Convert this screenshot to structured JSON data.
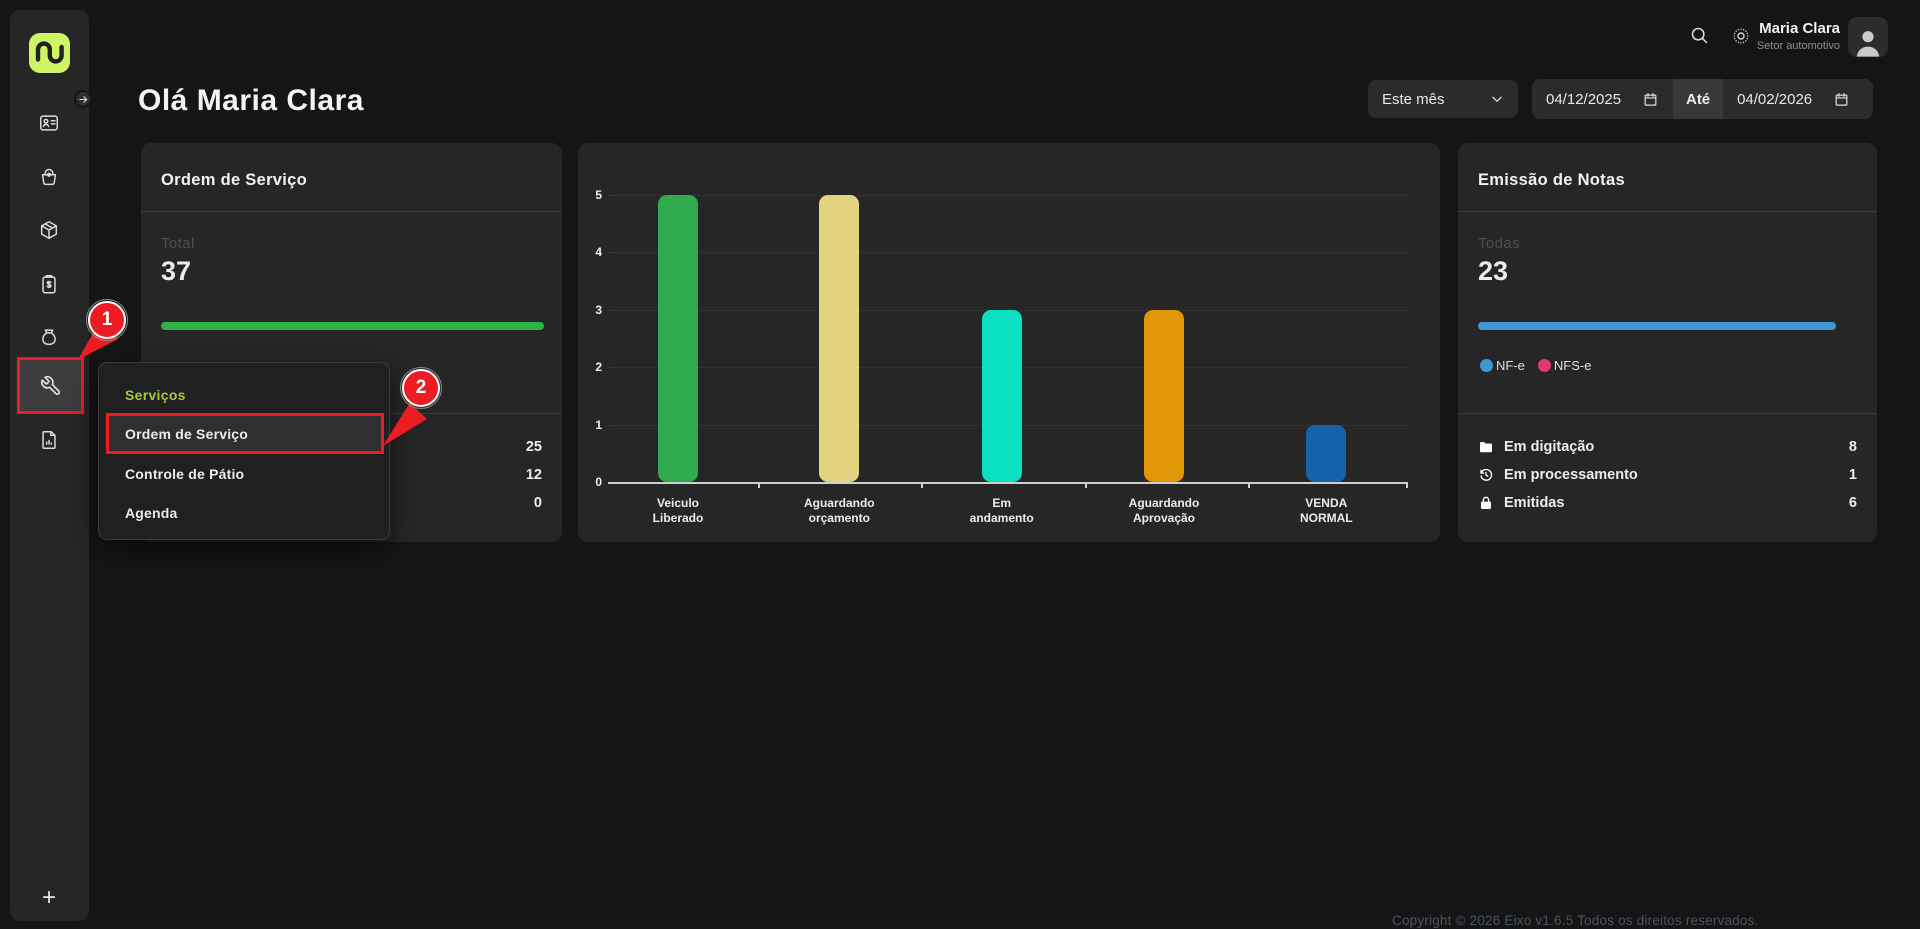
{
  "sidebar": {
    "icons": [
      "contact-card",
      "shopping-basket",
      "package-box",
      "invoice-clipboard",
      "money-bag",
      "wrench",
      "report-document"
    ],
    "active_icon": "wrench",
    "expand_arrow": "→",
    "new_button": "+"
  },
  "topbar": {
    "user": {
      "name": "Maria Clara",
      "role": "Setor automotivo"
    },
    "icons": [
      "search",
      "brightness"
    ]
  },
  "page": {
    "greeting": "Olá Maria Clara"
  },
  "filters": {
    "period": "Este mês",
    "date_from": "04/12/2025",
    "between_label": "Até",
    "date_to": "04/02/2026"
  },
  "cards": {
    "ordem": {
      "title": "Ordem de Serviço",
      "total_label": "Total",
      "total_value": "37",
      "bar_color": "#2eb34a",
      "rows": [
        {
          "label": "",
          "value": "25"
        },
        {
          "label": "",
          "value": "12"
        },
        {
          "label": "",
          "value": "0"
        }
      ]
    },
    "notas": {
      "title": "Emissão de Notas",
      "total_label": "Todas",
      "total_value": "23",
      "bar_color": "#3f97d4",
      "legend": [
        {
          "label": "NF-e",
          "color": "#3f97d4"
        },
        {
          "label": "NFS-e",
          "color": "#e23a70"
        }
      ],
      "rows": [
        {
          "icon": "folder",
          "label": "Em digitação",
          "value": "8"
        },
        {
          "icon": "history",
          "label": "Em processamento",
          "value": "1"
        },
        {
          "icon": "lock",
          "label": "Emitidas",
          "value": "6"
        }
      ]
    }
  },
  "chart_data": {
    "type": "bar",
    "categories": [
      [
        "Veiculo",
        "Liberado"
      ],
      [
        "Aguardando",
        "orçamento"
      ],
      [
        "Em",
        "andamento"
      ],
      [
        "Aguardando",
        "Aprovação"
      ],
      [
        "VENDA",
        "NORMAL"
      ]
    ],
    "values": [
      5,
      5,
      3,
      3,
      1
    ],
    "colors": [
      "#2faa4f",
      "#e3d37f",
      "#0be0c2",
      "#e29708",
      "#1563ab"
    ],
    "ylim": [
      0,
      5
    ],
    "yticks": [
      0,
      1,
      2,
      3,
      4,
      5
    ],
    "grid": "dotted-horizontal",
    "title": "",
    "xlabel": "",
    "ylabel": ""
  },
  "context_menu": {
    "section": "Serviços",
    "items": [
      "Ordem de Serviço",
      "Controle de Pátio",
      "Agenda"
    ],
    "highlighted": "Ordem de Serviço"
  },
  "annotations": {
    "step1": "1",
    "step2": "2"
  },
  "footer": {
    "copyright": "Copyright © 2026 Eixo v1.6.5 Todos os direitos reservados."
  }
}
